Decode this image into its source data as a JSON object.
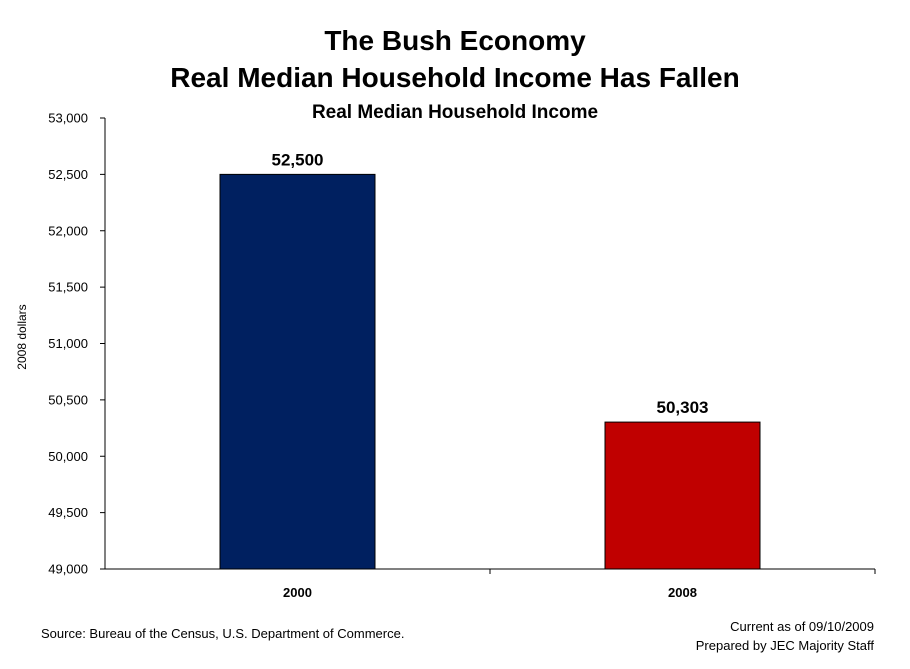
{
  "chart_data": {
    "type": "bar",
    "title": "The Bush Economy",
    "title_line2": "Real Median Household Income Has Fallen",
    "subtitle": "Real Median Household Income",
    "ylabel": "2008 dollars",
    "xlabel": "",
    "categories": [
      "2000",
      "2008"
    ],
    "values": [
      52500,
      50303
    ],
    "value_labels": [
      "52,500",
      "50,303"
    ],
    "colors": [
      "#002060",
      "#C00000"
    ],
    "ylim": [
      49000,
      53000
    ],
    "yticks": [
      49000,
      49500,
      50000,
      50500,
      51000,
      51500,
      52000,
      52500,
      53000
    ],
    "ytick_labels": [
      "49,000",
      "49,500",
      "50,000",
      "50,500",
      "51,000",
      "51,500",
      "52,000",
      "52,500",
      "53,000"
    ],
    "grid": false,
    "legend": "none"
  },
  "footer": {
    "source": "Source: Bureau of the Census, U.S. Department of Commerce.",
    "current_as_of": "Current as of 09/10/2009",
    "prepared_by": "Prepared by JEC Majority Staff"
  }
}
